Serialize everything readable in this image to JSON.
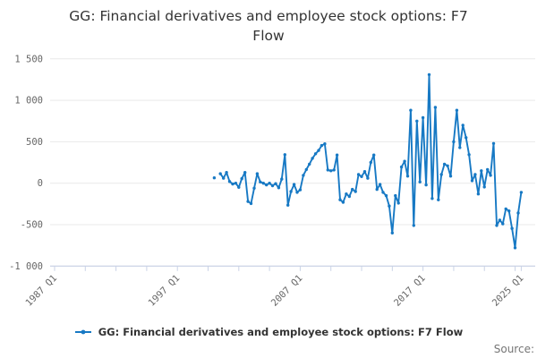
{
  "title_lines": [
    "GG: Financial derivatives and employee stock options: F7",
    "Flow"
  ],
  "legend": {
    "label": "GG: Financial derivatives and employee stock options: F7 Flow"
  },
  "footer": {
    "source_label": "Source:"
  },
  "colors": {
    "series_line": "#1779c4",
    "gridline": "#e9e9e9",
    "axis_line": "#c9d2e6",
    "tick_label": "#666666",
    "title_text": "#333333",
    "legend_text": "#333333",
    "source_text": "#757575"
  },
  "chart_data": {
    "type": "line",
    "title": "GG: Financial derivatives and employee stock options: F7 Flow",
    "grid": "horizontal-only",
    "legend_position": "bottom",
    "x_axis": {
      "start": "1987 Q1",
      "end": "2025 Q1",
      "minor_tick_every_quarters": 10,
      "tick_labels": [
        "1987 Q1",
        "1997 Q1",
        "2007 Q1",
        "2017 Q1",
        "2025 Q1"
      ],
      "tick_label_quarter_offsets": [
        0,
        40,
        80,
        120,
        152
      ]
    },
    "y_axis": {
      "min": -1000,
      "max": 1500,
      "step": 500,
      "tick_values_top_to_bottom": [
        1500,
        1000,
        500,
        0,
        -500,
        -1000
      ],
      "tick_labels_top_to_bottom": [
        "1 500",
        "1 000",
        "500",
        "0",
        "-500",
        "-1 000"
      ]
    },
    "series": [
      {
        "name": "GG: Financial derivatives and employee stock options: F7 Flow",
        "quarters": [
          "2000 Q1",
          "2000 Q2",
          "2000 Q3",
          "2000 Q4",
          "2001 Q1",
          "2001 Q2",
          "2001 Q3",
          "2001 Q4",
          "2002 Q1",
          "2002 Q2",
          "2002 Q3",
          "2002 Q4",
          "2003 Q1",
          "2003 Q2",
          "2003 Q3",
          "2003 Q4",
          "2004 Q1",
          "2004 Q2",
          "2004 Q3",
          "2004 Q4",
          "2005 Q1",
          "2005 Q2",
          "2005 Q3",
          "2005 Q4",
          "2006 Q1",
          "2006 Q2",
          "2006 Q3",
          "2006 Q4",
          "2007 Q1",
          "2007 Q2",
          "2007 Q3",
          "2007 Q4",
          "2008 Q1",
          "2008 Q2",
          "2008 Q3",
          "2008 Q4",
          "2009 Q1",
          "2009 Q2",
          "2009 Q3",
          "2009 Q4",
          "2010 Q1",
          "2010 Q2",
          "2010 Q3",
          "2010 Q4",
          "2011 Q1",
          "2011 Q2",
          "2011 Q3",
          "2011 Q4",
          "2012 Q1",
          "2012 Q2",
          "2012 Q3",
          "2012 Q4",
          "2013 Q1",
          "2013 Q2",
          "2013 Q3",
          "2013 Q4",
          "2014 Q1",
          "2014 Q2",
          "2014 Q3",
          "2014 Q4",
          "2015 Q1",
          "2015 Q2",
          "2015 Q3",
          "2015 Q4",
          "2016 Q1",
          "2016 Q2",
          "2016 Q3",
          "2016 Q4",
          "2017 Q1",
          "2017 Q2",
          "2017 Q3",
          "2017 Q4",
          "2018 Q1",
          "2018 Q2",
          "2018 Q3",
          "2018 Q4",
          "2019 Q1",
          "2019 Q2",
          "2019 Q3",
          "2019 Q4",
          "2020 Q1",
          "2020 Q2",
          "2020 Q3",
          "2020 Q4",
          "2021 Q1",
          "2021 Q2",
          "2021 Q3",
          "2021 Q4",
          "2022 Q1",
          "2022 Q2",
          "2022 Q3",
          "2022 Q4",
          "2023 Q1",
          "2023 Q2",
          "2023 Q3",
          "2023 Q4",
          "2024 Q1",
          "2024 Q2",
          "2024 Q3",
          "2024 Q4",
          "2025 Q1"
        ],
        "values": [
          65,
          null,
          115,
          60,
          130,
          20,
          -10,
          0,
          -50,
          55,
          130,
          -220,
          -245,
          -60,
          115,
          15,
          0,
          -20,
          0,
          -30,
          -5,
          -55,
          50,
          345,
          -265,
          -100,
          -15,
          -110,
          -80,
          95,
          165,
          230,
          300,
          355,
          395,
          455,
          475,
          160,
          150,
          160,
          340,
          -200,
          -230,
          -130,
          -160,
          -75,
          -100,
          105,
          80,
          140,
          60,
          250,
          340,
          -75,
          -15,
          -110,
          -150,
          -275,
          -600,
          -150,
          -240,
          195,
          265,
          85,
          880,
          -510,
          750,
          15,
          790,
          -20,
          1310,
          -185,
          915,
          -200,
          105,
          230,
          210,
          85,
          500,
          880,
          430,
          700,
          550,
          345,
          30,
          105,
          -130,
          150,
          -45,
          165,
          95,
          480,
          -510,
          -445,
          -490,
          -310,
          -335,
          -545,
          -780,
          -360,
          -110
        ]
      }
    ]
  }
}
